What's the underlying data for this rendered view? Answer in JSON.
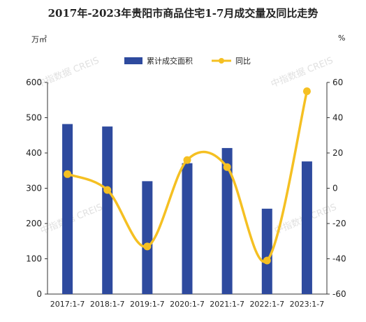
{
  "chart_data": {
    "type": "bar+line",
    "title": "2017年-2023年贵阳市商品住宅1-7月成交量及同比走势",
    "y_left_unit": "万㎡",
    "y_right_unit": "%",
    "categories": [
      "2017:1-7",
      "2018:1-7",
      "2019:1-7",
      "2020:1-7",
      "2021:1-7",
      "2022:1-7",
      "2023:1-7"
    ],
    "series": [
      {
        "name": "累计成交面积",
        "type": "bar",
        "axis": "left",
        "color": "#2e4a9e",
        "values": [
          482,
          475,
          320,
          371,
          414,
          242,
          376
        ]
      },
      {
        "name": "同比",
        "type": "line",
        "axis": "right",
        "color": "#f5c022",
        "values": [
          8,
          -1,
          -33,
          16,
          12,
          -41,
          55
        ]
      }
    ],
    "y_left": {
      "min": 0,
      "max": 600,
      "ticks": [
        "0",
        "100",
        "200",
        "300",
        "400",
        "500",
        "600"
      ]
    },
    "y_right": {
      "min": -60,
      "max": 60,
      "ticks": [
        "-60",
        "-40",
        "-20",
        "0",
        "20",
        "40",
        "60"
      ]
    },
    "legend_position": "top-center",
    "watermark": "中指数据 CREIS"
  }
}
